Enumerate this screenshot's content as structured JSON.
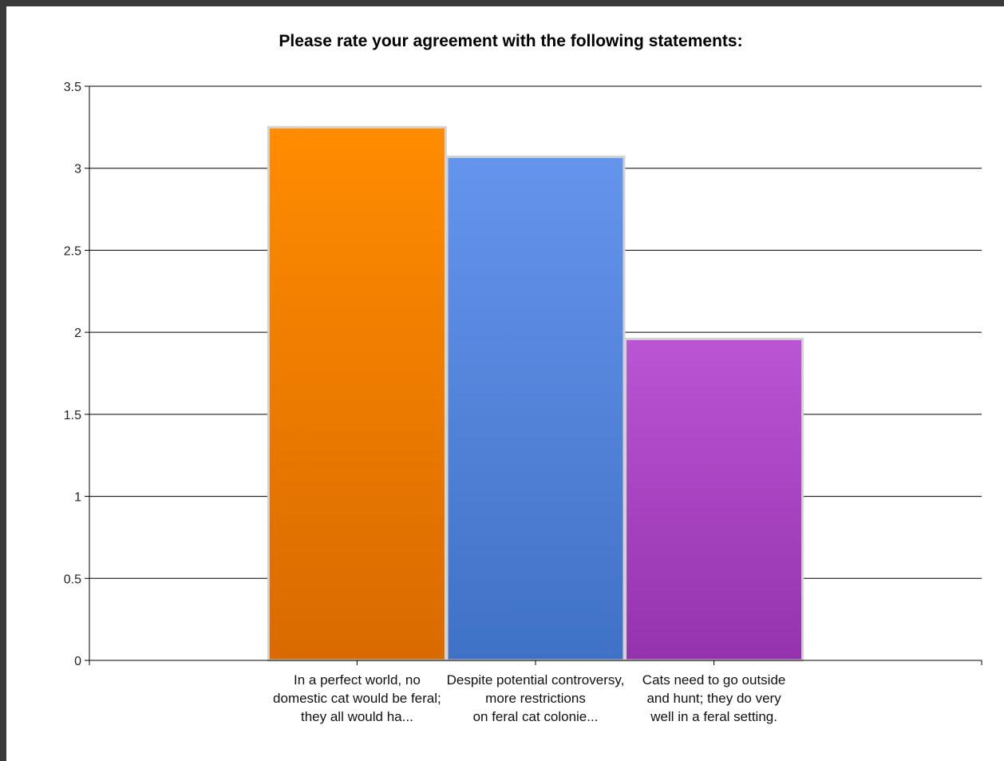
{
  "chart_data": {
    "type": "bar",
    "title": "Please rate your agreement with the following statements:",
    "xlabel": "",
    "ylabel": "",
    "ylim": [
      0,
      3.5
    ],
    "yticks": [
      "0",
      "0.5",
      "1",
      "1.5",
      "2",
      "2.5",
      "3",
      "3.5"
    ],
    "grid": true,
    "categories": [
      [
        "In a perfect world, no",
        "domestic cat would be feral;",
        "they all would ha..."
      ],
      [
        "Despite potential controversy,",
        "more restrictions",
        "on feral cat colonie..."
      ],
      [
        "Cats need to go outside",
        "and hunt; they do very",
        "well in a feral setting."
      ]
    ],
    "values": [
      3.25,
      3.07,
      1.96
    ],
    "colors": [
      {
        "top": "#ff8c00",
        "bottom": "#d96a00"
      },
      {
        "top": "#6495ed",
        "bottom": "#3f72c6"
      },
      {
        "top": "#ba55d3",
        "bottom": "#9532ad"
      }
    ]
  }
}
